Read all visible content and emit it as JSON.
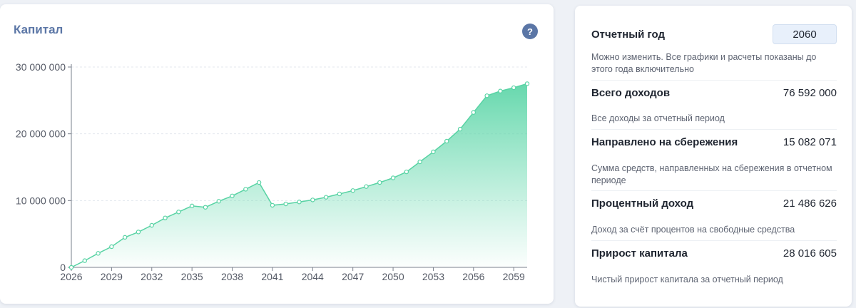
{
  "capital_card": {
    "title": "Капитал",
    "help_icon": "question-icon",
    "help_label": "?"
  },
  "colors": {
    "accent": "#5b76a6",
    "chart_line": "#58d3a4",
    "chart_fill": "#6bdbb1"
  },
  "chart_data": {
    "type": "area",
    "title": "Капитал",
    "xlabel": "",
    "ylabel": "",
    "x": [
      2026,
      2027,
      2028,
      2029,
      2030,
      2031,
      2032,
      2033,
      2034,
      2035,
      2036,
      2037,
      2038,
      2039,
      2040,
      2041,
      2042,
      2043,
      2044,
      2045,
      2046,
      2047,
      2048,
      2049,
      2050,
      2051,
      2052,
      2053,
      2054,
      2055,
      2056,
      2057,
      2058,
      2059,
      2060
    ],
    "values": [
      0,
      1000000,
      2100000,
      3100000,
      4500000,
      5300000,
      6300000,
      7400000,
      8300000,
      9200000,
      9000000,
      9900000,
      10700000,
      11700000,
      12700000,
      9300000,
      9500000,
      9800000,
      10100000,
      10500000,
      11000000,
      11500000,
      12100000,
      12700000,
      13400000,
      14300000,
      15800000,
      17300000,
      18900000,
      20700000,
      23200000,
      25700000,
      26400000,
      26900000,
      27500000
    ],
    "xlim": [
      2026,
      2060
    ],
    "ylim": [
      0,
      30000000
    ],
    "x_ticks": [
      "2026",
      "2029",
      "2032",
      "2035",
      "2038",
      "2041",
      "2044",
      "2047",
      "2050",
      "2053",
      "2056",
      "2059"
    ],
    "y_ticks": [
      "0",
      "10 000 000",
      "20 000 000",
      "30 000 000"
    ],
    "grid": true,
    "legend": "none"
  },
  "stats": {
    "report_year": {
      "label": "Отчетный год",
      "value": "2060",
      "description": "Можно изменить. Все графики и расчеты показаны до этого года включительно"
    },
    "total_income": {
      "label": "Всего доходов",
      "value": "76 592 000",
      "description": "Все доходы за отчетный период"
    },
    "savings": {
      "label": "Направлено на сбережения",
      "value": "15 082 071",
      "description": "Сумма средств, направленных на сбережения в отчетном периоде"
    },
    "interest_income": {
      "label": "Процентный доход",
      "value": "21 486 626",
      "description": "Доход за счёт процентов на свободные средства"
    },
    "capital_growth": {
      "label": "Прирост капитала",
      "value": "28 016 605",
      "description": "Чистый прирост капитала за отчетный период"
    }
  }
}
